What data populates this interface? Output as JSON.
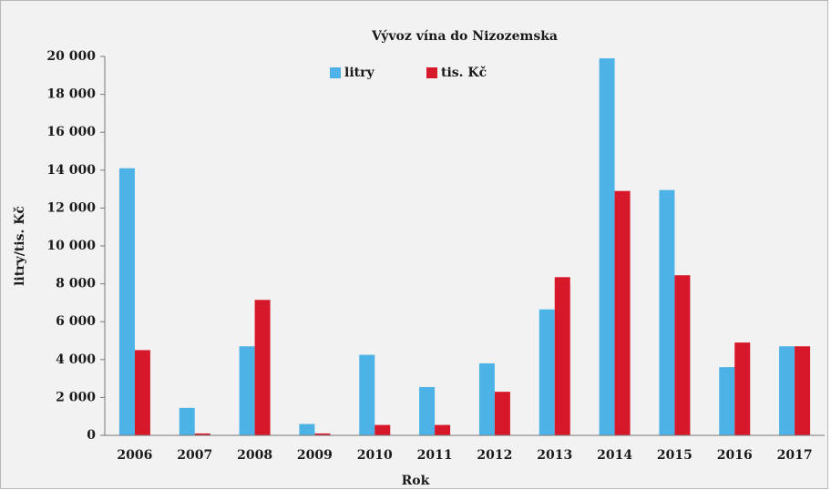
{
  "chart_data": {
    "type": "bar",
    "title": "Vývoz vína do Nizozemska",
    "x_label": "Rok",
    "y_label": "litry/tis. Kč",
    "categories": [
      "2006",
      "2007",
      "2008",
      "2009",
      "2010",
      "2011",
      "2012",
      "2013",
      "2014",
      "2015",
      "2016",
      "2017"
    ],
    "series": [
      {
        "name": "litry",
        "color": "#4db3e6",
        "values": [
          14100,
          1450,
          4700,
          600,
          4250,
          2550,
          3800,
          6650,
          19900,
          12950,
          3600,
          4700
        ]
      },
      {
        "name": "tis. Kč",
        "color": "#d7182a",
        "values": [
          4500,
          100,
          7150,
          100,
          550,
          550,
          2300,
          8350,
          12900,
          8450,
          4900,
          4700
        ]
      }
    ],
    "ylim": [
      0,
      20000
    ],
    "yticks": [
      0,
      {
        "value": 2000,
        "label": "2 000"
      },
      {
        "value": 4000,
        "label": "4 000"
      },
      {
        "value": 6000,
        "label": "6 000"
      },
      {
        "value": 8000,
        "label": "8 000"
      },
      {
        "value": 10000,
        "label": "10 000"
      },
      {
        "value": 12000,
        "label": "12 000"
      },
      {
        "value": 14000,
        "label": "14 000"
      },
      {
        "value": 16000,
        "label": "16 000"
      },
      {
        "value": 18000,
        "label": "18 000"
      },
      {
        "value": 20000,
        "label": "20 000"
      }
    ],
    "grid": false,
    "legend": "top"
  }
}
